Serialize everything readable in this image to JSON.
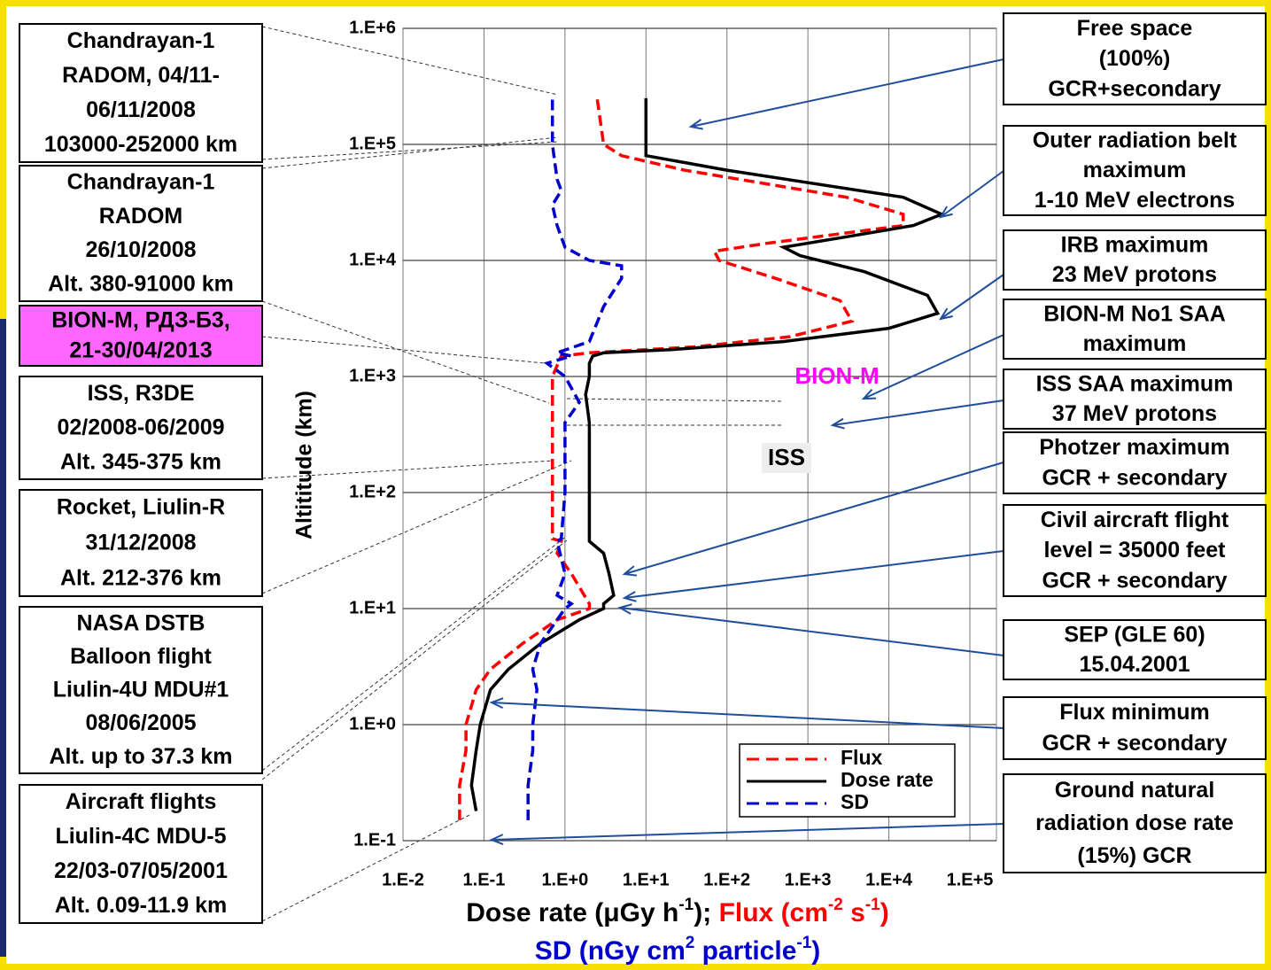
{
  "chart_data": {
    "type": "line",
    "ylabel": "Altititude (km)",
    "xlabel": [
      "Dose rate (μGy h",
      "-1",
      "); ",
      "Flux (cm",
      "-2",
      " s",
      "-1",
      ")"
    ],
    "xlabel2": [
      "SD (nGy cm",
      "2",
      " particle",
      "-1",
      ")"
    ],
    "xscale": "log",
    "yscale": "log",
    "grid": true,
    "legend": "lower right",
    "xlim": [
      0.01,
      100000
    ],
    "ylim": [
      0.1,
      1000000
    ],
    "xticks": [
      {
        "value": 0.01,
        "label": "1.E-2"
      },
      {
        "value": 0.1,
        "label": "1.E-1"
      },
      {
        "value": 1,
        "label": "1.E+0"
      },
      {
        "value": 10,
        "label": "1.E+1"
      },
      {
        "value": 100,
        "label": "1.E+2"
      },
      {
        "value": 1000,
        "label": "1.E+3"
      },
      {
        "value": 10000,
        "label": "1.E+4"
      },
      {
        "value": 100000,
        "label": "1.E+5"
      }
    ],
    "yticks": [
      {
        "value": 0.1,
        "label": "1.E-1"
      },
      {
        "value": 1,
        "label": "1.E+0"
      },
      {
        "value": 10,
        "label": "1.E+1"
      },
      {
        "value": 100,
        "label": "1.E+2"
      },
      {
        "value": 1000,
        "label": "1.E+3"
      },
      {
        "value": 10000,
        "label": "1.E+4"
      },
      {
        "value": 100000,
        "label": "1.E+5"
      },
      {
        "value": 1000000,
        "label": "1.E+6"
      }
    ],
    "series": [
      {
        "name": "Flux",
        "color": "#ff0000",
        "dash": "dashed",
        "y": [
          0.15,
          0.3,
          0.6,
          1,
          2,
          3,
          5,
          8,
          10,
          11,
          20,
          30,
          38,
          40,
          100,
          400,
          1000,
          1500,
          1600,
          1800,
          2200,
          3000,
          4500,
          7000,
          10000,
          12000,
          14000,
          20000,
          25000,
          35000,
          60000,
          80000,
          100000,
          250000
        ],
        "x": [
          0.05,
          0.05,
          0.06,
          0.06,
          0.08,
          0.12,
          0.3,
          0.8,
          2,
          2,
          1.2,
          0.8,
          0.9,
          0.7,
          0.7,
          0.7,
          0.7,
          0.9,
          2,
          40,
          600,
          3500,
          2500,
          400,
          80,
          70,
          300,
          15000,
          15000,
          3000,
          30,
          5,
          3,
          2.5
        ]
      },
      {
        "name": "Dose rate",
        "color": "#000000",
        "dash": "solid",
        "y": [
          0.18,
          0.3,
          0.6,
          1,
          2,
          3,
          5,
          8,
          10,
          11,
          13,
          20,
          30,
          38,
          40,
          100,
          400,
          700,
          1000,
          1300,
          1500,
          1600,
          1700,
          2000,
          2600,
          3500,
          5000,
          8000,
          11000,
          13000,
          16000,
          20000,
          25000,
          35000,
          60000,
          80000,
          100000,
          150000,
          250000
        ],
        "x": [
          0.08,
          0.07,
          0.08,
          0.09,
          0.12,
          0.2,
          0.5,
          1.5,
          3,
          3,
          4,
          3.5,
          3,
          2,
          2,
          2,
          2,
          1.8,
          2,
          2,
          2.2,
          3,
          20,
          500,
          10000,
          40000,
          30000,
          5000,
          800,
          500,
          3000,
          20000,
          45000,
          15000,
          100,
          10,
          10,
          10,
          10
        ]
      },
      {
        "name": "SD",
        "color": "#0000cc",
        "dash": "dashed",
        "y": [
          0.15,
          0.3,
          0.6,
          1,
          2,
          3,
          5,
          10,
          11,
          13,
          20,
          38,
          40,
          100,
          400,
          600,
          1000,
          1300,
          1500,
          1600,
          2000,
          4000,
          7000,
          9000,
          10000,
          13000,
          20000,
          30000,
          40000,
          50000,
          100000,
          250000
        ],
        "x": [
          0.35,
          0.35,
          0.4,
          0.4,
          0.45,
          0.4,
          0.5,
          1,
          1.2,
          0.8,
          1,
          0.8,
          0.9,
          1,
          1,
          1.5,
          1,
          0.6,
          1.2,
          0.8,
          2,
          3,
          5,
          5,
          2,
          1,
          0.8,
          0.7,
          0.9,
          0.8,
          0.7,
          0.7
        ]
      }
    ],
    "point_labels": [
      "BION-M",
      "ISS"
    ],
    "left_notes": [
      [
        "Chandrayan-1",
        "RADOM, 04/11-",
        "06/11/2008",
        "103000-252000 km"
      ],
      [
        "Chandrayan-1",
        "RADOM",
        "26/10/2008",
        "Alt. 380-91000 km"
      ],
      [
        "BION-M, РДЗ-Б3,",
        "21-30/04/2013"
      ],
      [
        "ISS, R3DE",
        "02/2008-06/2009",
        "Alt. 345-375 km"
      ],
      [
        "Rocket,  Liulin-R",
        "31/12/2008",
        "Alt. 212-376 km"
      ],
      [
        "NASA DSTB",
        "Balloon flight",
        "Liulin-4U MDU#1",
        "08/06/2005",
        "Alt. up to 37.3 km"
      ],
      [
        "Aircraft flights",
        "Liulin-4C MDU-5",
        "22/03-07/05/2001",
        "Alt. 0.09-11.9 km"
      ]
    ],
    "right_notes": [
      [
        "Free space",
        "(100%)",
        "GCR+secondary"
      ],
      [
        "Outer radiation belt",
        "maximum",
        "1-10 MeV electrons"
      ],
      [
        "IRB maximum",
        "23 MeV protons"
      ],
      [
        "BION-M No1 SAA",
        "maximum"
      ],
      [
        "ISS SAA maximum",
        "37 MeV protons"
      ],
      [
        "Photzer maximum",
        "GCR + secondary"
      ],
      [
        "Civil aircraft flight",
        "level = 35000 feet",
        "GCR + secondary"
      ],
      [
        "SEP (GLE 60)",
        "15.04.2001"
      ],
      [
        "Flux minimum",
        "GCR + secondary"
      ],
      [
        "Ground natural",
        "radiation dose rate",
        "(15%) GCR"
      ]
    ]
  }
}
